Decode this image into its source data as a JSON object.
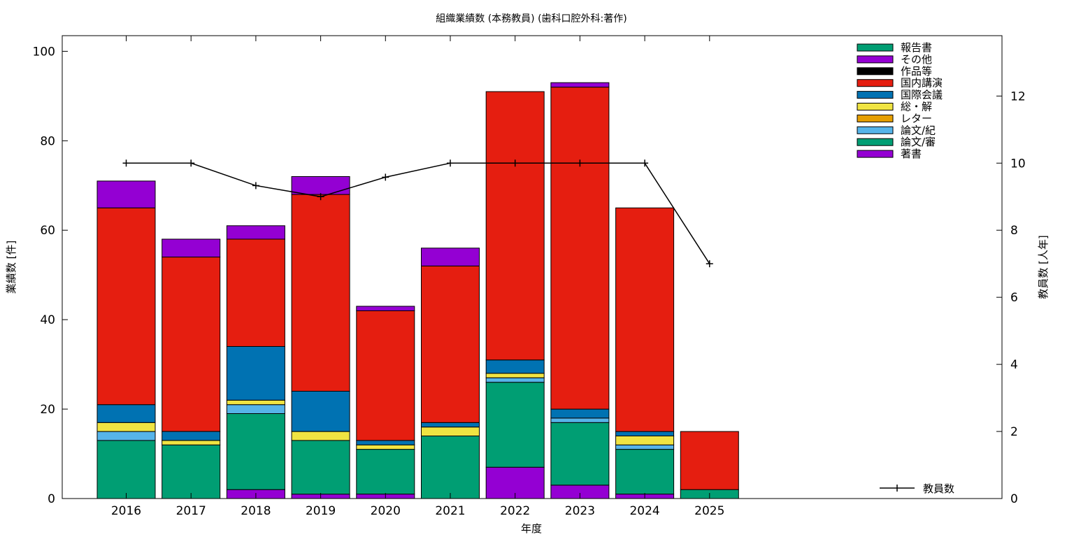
{
  "chart_data": {
    "type": "bar",
    "title": "組織業績数 (本務教員) (歯科口腔外科:著作)",
    "xlabel": "年度",
    "ylabel": "業績数 [件]",
    "y2label": "教員数 [人年]",
    "categories": [
      "2016",
      "2017",
      "2018",
      "2019",
      "2020",
      "2021",
      "2022",
      "2023",
      "2024",
      "2025"
    ],
    "ylim": [
      0,
      103.5
    ],
    "y2lim": [
      0,
      13.8
    ],
    "yticks": [
      0,
      20,
      40,
      60,
      80,
      100
    ],
    "y2ticks": [
      0,
      2,
      4,
      6,
      8,
      10,
      12
    ],
    "grid": false,
    "legend_position": "top-right",
    "series": [
      {
        "name": "著書",
        "color": "#9400d3",
        "values": [
          0,
          0,
          2,
          1,
          1,
          0,
          7,
          3,
          1,
          0
        ]
      },
      {
        "name": "論文/審",
        "color": "#009e73",
        "values": [
          13,
          12,
          17,
          12,
          10,
          14,
          19,
          14,
          10,
          2
        ]
      },
      {
        "name": "論文/紀",
        "color": "#56b4e9",
        "values": [
          2,
          0,
          2,
          0,
          0,
          0,
          1,
          1,
          1,
          0
        ]
      },
      {
        "name": "レター",
        "color": "#e69f00",
        "values": [
          0,
          0,
          0,
          0,
          0,
          0,
          0,
          0,
          0,
          0
        ]
      },
      {
        "name": "総・解",
        "color": "#f0e442",
        "values": [
          2,
          1,
          1,
          2,
          1,
          2,
          1,
          0,
          2,
          0
        ]
      },
      {
        "name": "国際会議",
        "color": "#0072b2",
        "values": [
          4,
          2,
          12,
          9,
          1,
          1,
          3,
          2,
          1,
          0
        ]
      },
      {
        "name": "国内講演",
        "color": "#e51e10",
        "values": [
          44,
          39,
          24,
          44,
          29,
          35,
          60,
          72,
          50,
          13
        ]
      },
      {
        "name": "作品等",
        "color": "#000000",
        "values": [
          0,
          0,
          0,
          0,
          0,
          0,
          0,
          0,
          0,
          0
        ]
      },
      {
        "name": "その他",
        "color": "#9400d3",
        "values": [
          6,
          4,
          3,
          4,
          1,
          4,
          0,
          1,
          0,
          0
        ]
      },
      {
        "name": "報告書",
        "color": "#009e73",
        "values": [
          0,
          0,
          0,
          0,
          0,
          0,
          0,
          0,
          0,
          0
        ]
      }
    ],
    "legend_order": [
      "報告書",
      "その他",
      "作品等",
      "国内講演",
      "国際会議",
      "総・解",
      "レター",
      "論文/紀",
      "論文/審",
      "著書"
    ],
    "line_series": {
      "name": "教員数",
      "color": "#000000",
      "axis": "y2",
      "values": [
        10,
        10,
        9.33,
        9,
        9.58,
        10,
        10,
        10,
        10,
        7
      ]
    }
  }
}
